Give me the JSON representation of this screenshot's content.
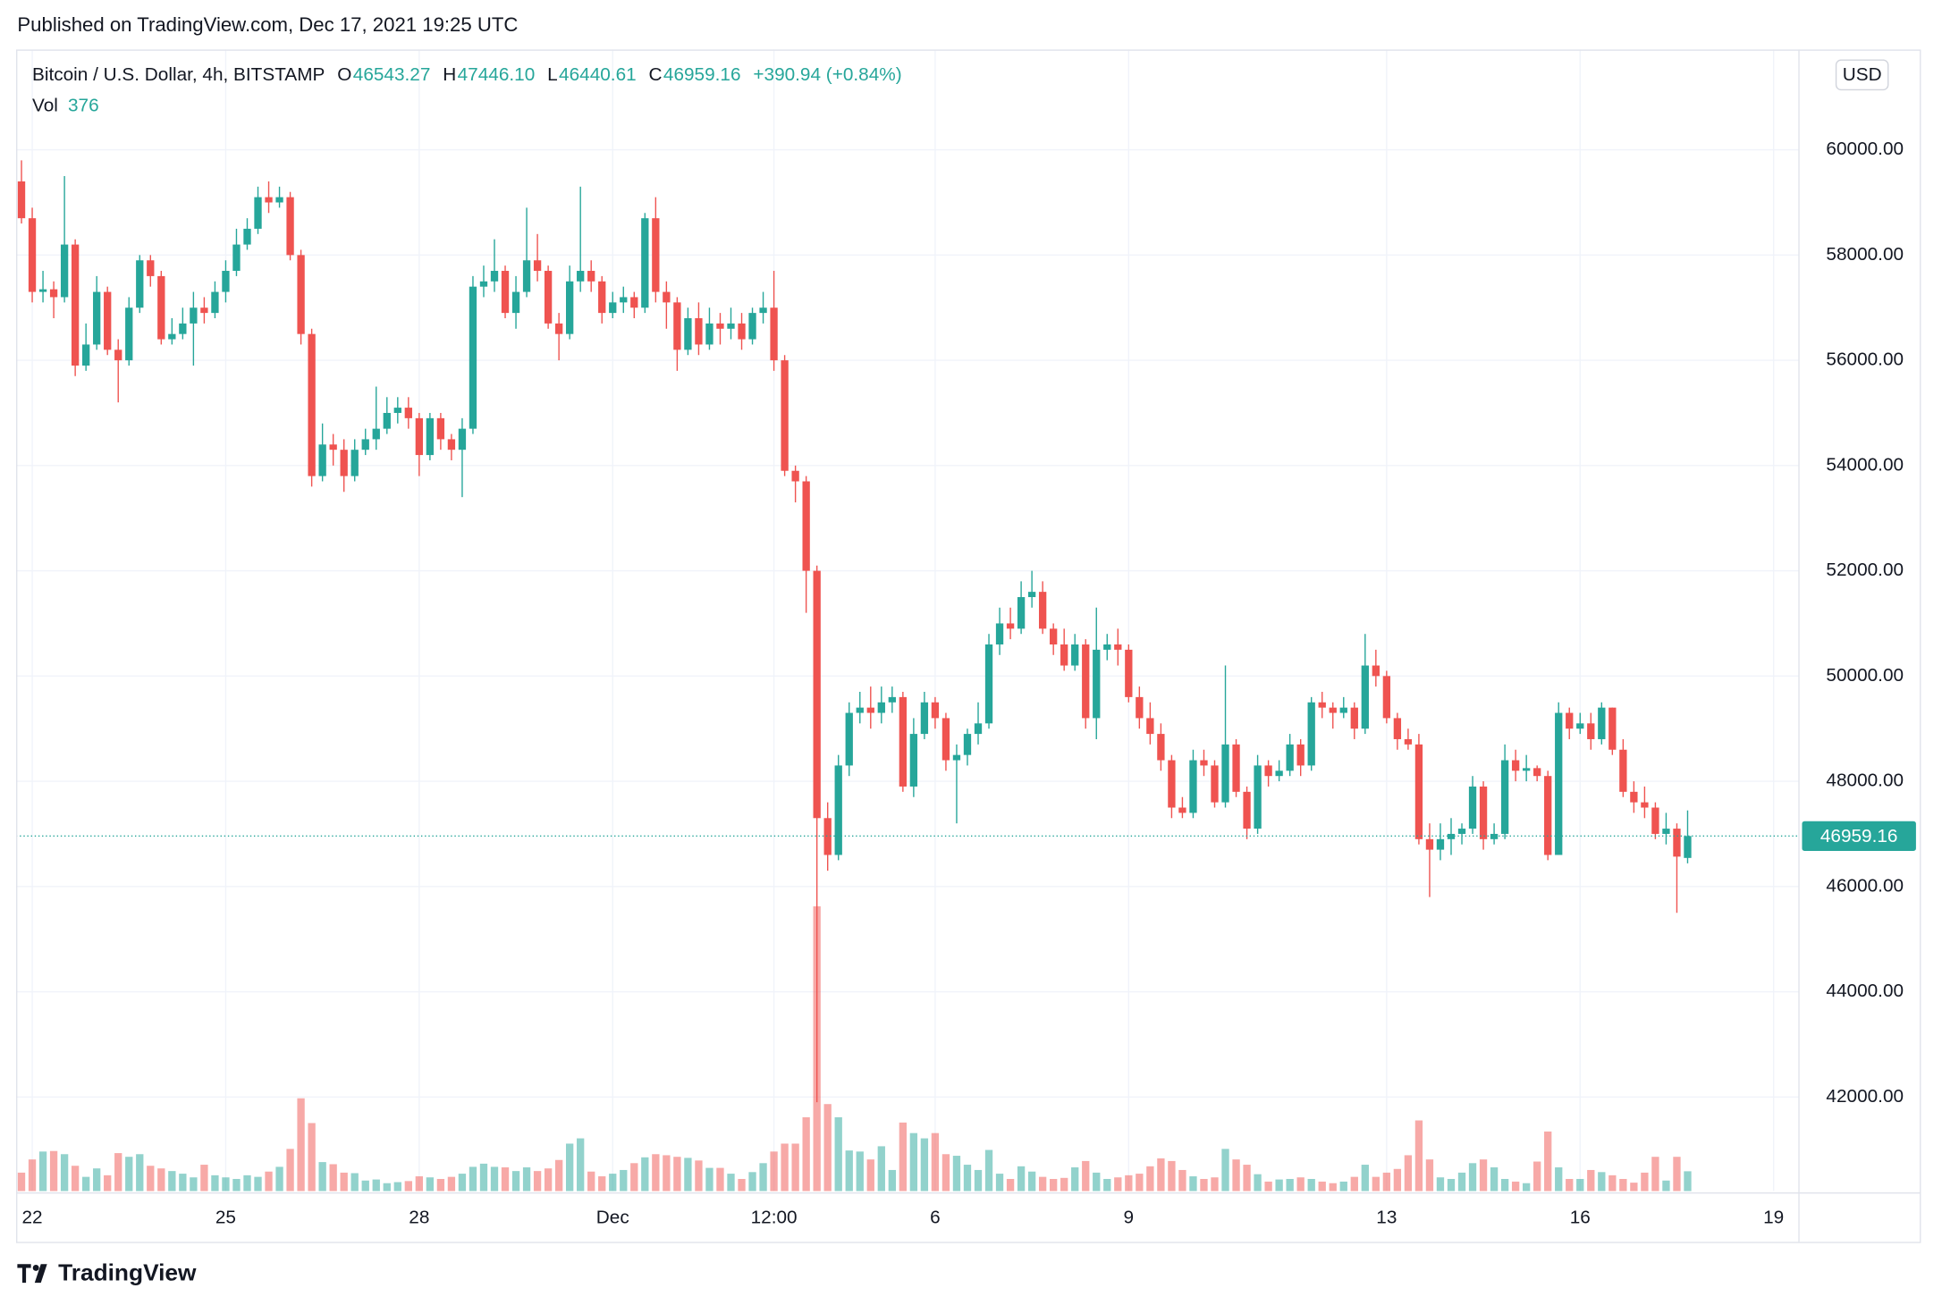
{
  "header": {
    "published": "Published on TradingView.com, Dec 17, 2021 19:25 UTC",
    "brand": "TradingView"
  },
  "chart_data": {
    "type": "candlestick",
    "title": "Bitcoin / U.S. Dollar, 4h, BITSTAMP",
    "ohlc_legend": [
      {
        "label": "O",
        "value": "46543.27"
      },
      {
        "label": "H",
        "value": "47446.10"
      },
      {
        "label": "L",
        "value": "46440.61"
      },
      {
        "label": "C",
        "value": "46959.16"
      }
    ],
    "change": "+390.94 (+0.84%)",
    "volume_label": "Vol",
    "currency": "USD",
    "up_color": "#26a69a",
    "down_color": "#ef5350",
    "grid": true,
    "open": [
      59400,
      58700,
      57300,
      57350,
      57200,
      58200,
      55900,
      56300,
      57300,
      56200,
      56000,
      57000,
      57900,
      57600,
      56400,
      56500,
      56700,
      57000,
      56900,
      57300,
      57700,
      58200,
      58500,
      59100,
      59000,
      59100,
      58000,
      56500,
      53800,
      54400,
      54300,
      53800,
      54300,
      54500,
      54700,
      55000,
      55100,
      54900,
      54200,
      54900,
      54500,
      54300,
      54700,
      57400,
      57500,
      57700,
      56900,
      57300,
      57900,
      57700,
      56700,
      56500,
      57500,
      57700,
      57500,
      56900,
      57100,
      57200,
      57000,
      58700,
      57300,
      57100,
      56200,
      56800,
      56300,
      56700,
      56600,
      56700,
      56400,
      56900,
      57000,
      56000,
      53900,
      53700,
      52000,
      47300,
      46600,
      48300,
      49300,
      49400,
      49300,
      49500,
      49600,
      47900,
      48900,
      49500,
      49200,
      48400,
      48500,
      48900,
      49100,
      50600,
      51000,
      50900,
      51500,
      51600,
      50900,
      50600,
      50200,
      50600,
      49200,
      50500,
      50600,
      50500,
      49600,
      49200,
      48900,
      48400,
      47500,
      47400,
      48400,
      48300,
      47600,
      48700,
      47800,
      47100,
      48300,
      48100,
      48200,
      48700,
      48300,
      49500,
      49400,
      49300,
      49400,
      49000,
      50200,
      50000,
      49200,
      48800,
      48700,
      46900,
      46700,
      46900,
      47000,
      47100,
      47900,
      46900,
      47000,
      48400,
      48200,
      48250,
      48100,
      46600,
      49300,
      49000,
      49100,
      48800,
      49400,
      48600,
      47800,
      47600,
      47500,
      47000,
      47100,
      46543.27
    ],
    "high": [
      59800,
      58900,
      57700,
      57500,
      59500,
      58300,
      56700,
      57600,
      57400,
      56400,
      57200,
      58000,
      58000,
      57700,
      56800,
      57000,
      57300,
      57200,
      57500,
      57900,
      58500,
      58700,
      59300,
      59400,
      59300,
      59200,
      58100,
      56600,
      54800,
      54600,
      54500,
      54500,
      54700,
      55500,
      55300,
      55300,
      55300,
      55000,
      55000,
      55000,
      54600,
      54900,
      57600,
      57800,
      58300,
      57800,
      57600,
      58900,
      58400,
      57800,
      56900,
      57800,
      59300,
      57900,
      57600,
      57300,
      57400,
      57300,
      58800,
      59100,
      57500,
      57200,
      57000,
      57100,
      57000,
      56900,
      57000,
      56900,
      57000,
      57300,
      57700,
      56100,
      54000,
      53800,
      52100,
      47600,
      48500,
      49500,
      49700,
      49800,
      49800,
      49800,
      49700,
      49200,
      49700,
      49600,
      49300,
      48700,
      49000,
      49500,
      50800,
      51300,
      51300,
      51800,
      52000,
      51800,
      51000,
      50900,
      50800,
      50700,
      51300,
      50800,
      50900,
      50600,
      49800,
      49500,
      49100,
      48500,
      47700,
      48600,
      48600,
      48400,
      50200,
      48800,
      47900,
      48500,
      48400,
      48400,
      48900,
      48800,
      49600,
      49700,
      49500,
      49600,
      49500,
      50800,
      50500,
      50100,
      49300,
      49000,
      48900,
      47200,
      47200,
      47300,
      47200,
      48100,
      48000,
      47200,
      48700,
      48600,
      48500,
      48300,
      48200,
      49500,
      49400,
      49300,
      49300,
      49500,
      49400,
      48800,
      48000,
      47900,
      47600,
      47400,
      47200,
      47446.1
    ],
    "low": [
      58600,
      57100,
      57100,
      56800,
      57100,
      55700,
      55800,
      56200,
      56100,
      55200,
      55900,
      56900,
      57400,
      56300,
      56300,
      56400,
      55900,
      56700,
      56800,
      57100,
      57600,
      58100,
      58400,
      58800,
      58900,
      57900,
      56300,
      53600,
      53700,
      54000,
      53500,
      53700,
      54200,
      54300,
      54600,
      54800,
      54700,
      53800,
      54100,
      54300,
      54100,
      53400,
      54600,
      57200,
      57300,
      56800,
      56600,
      57200,
      57500,
      56600,
      56000,
      56400,
      57300,
      57300,
      56700,
      56800,
      56900,
      56800,
      56900,
      57100,
      56600,
      55800,
      56100,
      56100,
      56200,
      56300,
      56400,
      56200,
      56300,
      56700,
      55800,
      53800,
      53300,
      51200,
      41900,
      46300,
      46500,
      48100,
      49100,
      49000,
      49100,
      49300,
      47800,
      47700,
      48800,
      49000,
      48200,
      47200,
      48300,
      48700,
      49000,
      50400,
      50700,
      50800,
      51300,
      50800,
      50400,
      50100,
      50100,
      49000,
      48800,
      50300,
      50200,
      49500,
      49000,
      48700,
      48200,
      47300,
      47300,
      47300,
      48100,
      47500,
      47500,
      47700,
      46900,
      47000,
      47900,
      48000,
      48100,
      48100,
      48200,
      49200,
      49000,
      49200,
      48800,
      48900,
      49800,
      49100,
      48600,
      48600,
      46800,
      45800,
      46500,
      46600,
      46800,
      47000,
      46700,
      46800,
      46900,
      48000,
      48000,
      48000,
      46500,
      46600,
      48800,
      48900,
      48600,
      48700,
      48500,
      47700,
      47400,
      47300,
      46900,
      46800,
      45500,
      46440.61
    ],
    "close": [
      58700,
      57300,
      57350,
      57200,
      58200,
      55900,
      56300,
      57300,
      56200,
      56000,
      57000,
      57900,
      57600,
      56400,
      56500,
      56700,
      57000,
      56900,
      57300,
      57700,
      58200,
      58500,
      59100,
      59000,
      59100,
      58000,
      56500,
      53800,
      54400,
      54300,
      53800,
      54300,
      54500,
      54700,
      55000,
      55100,
      54900,
      54200,
      54900,
      54500,
      54300,
      54700,
      57400,
      57500,
      57700,
      56900,
      57300,
      57900,
      57700,
      56700,
      56500,
      57500,
      57700,
      57500,
      56900,
      57100,
      57200,
      57000,
      58700,
      57300,
      57100,
      56200,
      56800,
      56300,
      56700,
      56600,
      56700,
      56400,
      56900,
      57000,
      56000,
      53900,
      53700,
      52000,
      47300,
      46600,
      48300,
      49300,
      49400,
      49300,
      49500,
      49600,
      47900,
      48900,
      49500,
      49200,
      48400,
      48500,
      48900,
      49100,
      50600,
      51000,
      50900,
      51500,
      51600,
      50900,
      50600,
      50200,
      50600,
      49200,
      50500,
      50600,
      50500,
      49600,
      49200,
      48900,
      48400,
      47500,
      47400,
      48400,
      48300,
      47600,
      48700,
      47800,
      47100,
      48300,
      48100,
      48200,
      48700,
      48300,
      49500,
      49400,
      49300,
      49400,
      49000,
      50200,
      50000,
      49200,
      48800,
      48700,
      46900,
      46700,
      46900,
      47000,
      47100,
      47900,
      46900,
      47000,
      48400,
      48200,
      48250,
      48100,
      46600,
      49300,
      49000,
      49100,
      48800,
      49400,
      48600,
      47800,
      47600,
      47500,
      47000,
      47100,
      46568.22,
      46959.16
    ],
    "volume": [
      350,
      600,
      750,
      760,
      700,
      480,
      270,
      430,
      300,
      720,
      650,
      700,
      480,
      430,
      380,
      330,
      260,
      500,
      300,
      260,
      230,
      300,
      270,
      370,
      460,
      800,
      1760,
      1290,
      550,
      510,
      350,
      340,
      200,
      220,
      150,
      170,
      190,
      280,
      260,
      230,
      270,
      330,
      460,
      520,
      460,
      450,
      380,
      450,
      380,
      430,
      590,
      900,
      1000,
      370,
      280,
      330,
      400,
      530,
      640,
      700,
      680,
      650,
      630,
      580,
      440,
      440,
      330,
      230,
      360,
      530,
      750,
      900,
      900,
      1400,
      5400,
      1650,
      1400,
      770,
      750,
      600,
      850,
      400,
      1300,
      1100,
      1000,
      1100,
      700,
      670,
      500,
      400,
      780,
      330,
      230,
      470,
      370,
      270,
      230,
      250,
      450,
      570,
      350,
      230,
      260,
      300,
      330,
      470,
      620,
      570,
      400,
      280,
      230,
      260,
      800,
      600,
      500,
      320,
      180,
      220,
      230,
      260,
      230,
      180,
      150,
      180,
      270,
      500,
      270,
      350,
      420,
      680,
      1340,
      600,
      260,
      230,
      350,
      530,
      600,
      450,
      230,
      180,
      150,
      560,
      1130,
      450,
      230,
      230,
      400,
      360,
      300,
      230,
      160,
      350,
      650,
      200,
      650,
      376
    ],
    "xlim": [
      -0.5,
      165.3
    ],
    "xticks": [
      {
        "value": 1,
        "label": "22"
      },
      {
        "value": 19,
        "label": "25"
      },
      {
        "value": 37,
        "label": "28"
      },
      {
        "value": 55,
        "label": "Dec"
      },
      {
        "value": 70,
        "label": "12:00"
      },
      {
        "value": 85,
        "label": "6"
      },
      {
        "value": 103,
        "label": "9"
      },
      {
        "value": 127,
        "label": "13"
      },
      {
        "value": 145,
        "label": "16"
      },
      {
        "value": 163,
        "label": "19"
      }
    ],
    "ylim": [
      40212,
      61906
    ],
    "yticks": [
      {
        "value": 60000,
        "label": "60000.00"
      },
      {
        "value": 58000,
        "label": "58000.00"
      },
      {
        "value": 56000,
        "label": "56000.00"
      },
      {
        "value": 54000,
        "label": "54000.00"
      },
      {
        "value": 52000,
        "label": "52000.00"
      },
      {
        "value": 50000,
        "label": "50000.00"
      },
      {
        "value": 48000,
        "label": "48000.00"
      },
      {
        "value": 46000,
        "label": "46000.00"
      },
      {
        "value": 44000,
        "label": "44000.00"
      },
      {
        "value": 42000,
        "label": "42000.00"
      }
    ]
  }
}
